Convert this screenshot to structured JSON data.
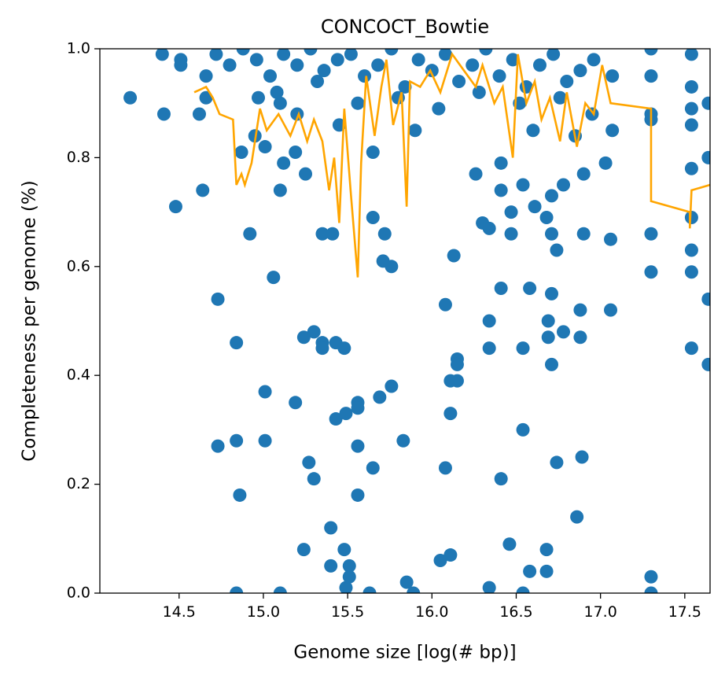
{
  "chart_data": {
    "type": "scatter",
    "title": "CONCOCT_Bowtie",
    "x_label": "Genome size [log(# bp)]",
    "y_label": "Completeness per genome (%)",
    "xlim": [
      14.03,
      17.65
    ],
    "ylim": [
      0,
      1
    ],
    "xticks": [
      14.5,
      {
        "value": 15,
        "label": "15.0"
      },
      15.5,
      {
        "value": 16,
        "label": "16.0"
      },
      16.5,
      {
        "value": 17,
        "label": "17.0"
      },
      17.5
    ],
    "yticks": [
      {
        "value": 0,
        "label": "0.0"
      },
      0.2,
      0.4,
      0.6,
      0.8,
      {
        "value": 1,
        "label": "1.0"
      }
    ],
    "points": {
      "color": "#1f77b4",
      "x": [
        14.21,
        14.4,
        14.41,
        14.48,
        14.51,
        14.51,
        14.62,
        14.64,
        14.66,
        14.66,
        14.73,
        14.73,
        14.84,
        14.84,
        14.84,
        14.86,
        14.87,
        14.92,
        14.95,
        14.97,
        15.01,
        15.01,
        15.01,
        15.06,
        15.1,
        15.1,
        15.12,
        15.1,
        15.19,
        15.19,
        15.24,
        15.24,
        15.25,
        15.27,
        15.3,
        15.3,
        15.35,
        15.35,
        15.35,
        15.4,
        15.4,
        15.41,
        15.43,
        15.43,
        15.48,
        15.48,
        15.49,
        15.51,
        15.51,
        15.49,
        15.56,
        15.56,
        15.56,
        15.56,
        15.65,
        15.65,
        15.65,
        15.69,
        15.71,
        15.72,
        15.76,
        15.76,
        15.83,
        15.85,
        15.89,
        15.63,
        16.05,
        16.08,
        16.08,
        16.11,
        16.11,
        16.11,
        16.13,
        16.15,
        16.15,
        16.15,
        16.26,
        16.3,
        16.34,
        16.34,
        16.34,
        16.34,
        16.41,
        16.41,
        16.41,
        16.41,
        16.46,
        16.47,
        16.47,
        16.54,
        16.54,
        16.54,
        16.54,
        16.58,
        16.58,
        16.61,
        16.68,
        16.68,
        16.68,
        16.69,
        16.69,
        16.71,
        16.71,
        16.71,
        16.71,
        16.74,
        16.74,
        16.78,
        16.78,
        16.86,
        16.88,
        16.88,
        16.89,
        16.9,
        16.9,
        17.06,
        17.06,
        17.03,
        17.3,
        17.3,
        17.3,
        17.3,
        17.3,
        17.3,
        17.3,
        17.3,
        17.54,
        17.54,
        17.54,
        17.54,
        17.54,
        17.54,
        17.54,
        17.54,
        17.54,
        17.64,
        17.64,
        17.64,
        17.64,
        14.72,
        14.8,
        14.88,
        14.96,
        15.04,
        15.12,
        15.2,
        15.28,
        15.36,
        15.44,
        15.52,
        15.6,
        15.68,
        15.76,
        15.84,
        15.92,
        16.0,
        16.08,
        16.16,
        16.24,
        16.32,
        16.4,
        16.48,
        16.56,
        16.64,
        16.72,
        16.8,
        16.88,
        16.96,
        15.08,
        15.32,
        15.56,
        15.8,
        16.04,
        16.28,
        16.52,
        16.76,
        16.95,
        15.2,
        15.45,
        15.9,
        16.6,
        16.85,
        17.07,
        17.07
      ],
      "values": [
        0.91,
        0.99,
        0.88,
        0.71,
        0.98,
        0.97,
        0.88,
        0.74,
        0.95,
        0.91,
        0.54,
        0.27,
        0.46,
        0.28,
        0.0,
        0.18,
        0.81,
        0.66,
        0.84,
        0.91,
        0.82,
        0.37,
        0.28,
        0.58,
        0.0,
        0.74,
        0.79,
        0.9,
        0.35,
        0.81,
        0.47,
        0.08,
        0.77,
        0.24,
        0.48,
        0.21,
        0.66,
        0.46,
        0.45,
        0.12,
        0.05,
        0.66,
        0.32,
        0.46,
        0.45,
        0.08,
        0.01,
        0.05,
        0.03,
        0.33,
        0.35,
        0.34,
        0.27,
        0.18,
        0.81,
        0.69,
        0.23,
        0.36,
        0.61,
        0.66,
        0.6,
        0.38,
        0.28,
        0.02,
        0.0,
        0.0,
        0.06,
        0.53,
        0.23,
        0.39,
        0.33,
        0.07,
        0.62,
        0.43,
        0.42,
        0.39,
        0.77,
        0.68,
        0.67,
        0.5,
        0.45,
        0.01,
        0.56,
        0.21,
        0.79,
        0.74,
        0.09,
        0.66,
        0.7,
        0.75,
        0.45,
        0.3,
        0.0,
        0.56,
        0.04,
        0.71,
        0.69,
        0.08,
        0.04,
        0.5,
        0.47,
        0.55,
        0.42,
        0.66,
        0.73,
        0.63,
        0.24,
        0.48,
        0.75,
        0.14,
        0.52,
        0.47,
        0.25,
        0.66,
        0.77,
        0.52,
        0.65,
        0.79,
        1.0,
        0.95,
        0.88,
        0.87,
        0.66,
        0.59,
        0.03,
        0.0,
        0.99,
        0.93,
        0.89,
        0.86,
        0.78,
        0.69,
        0.63,
        0.59,
        0.45,
        0.42,
        0.54,
        0.8,
        0.9,
        0.99,
        0.97,
        1.0,
        0.98,
        0.95,
        0.99,
        0.97,
        1.0,
        0.96,
        0.98,
        0.99,
        0.95,
        0.97,
        1.0,
        0.93,
        0.98,
        0.96,
        0.99,
        0.94,
        0.97,
        1.0,
        0.95,
        0.98,
        0.93,
        0.97,
        0.99,
        0.94,
        0.96,
        0.98,
        0.92,
        0.94,
        0.9,
        0.91,
        0.89,
        0.92,
        0.9,
        0.91,
        0.88,
        0.88,
        0.86,
        0.85,
        0.85,
        0.84,
        0.85,
        0.95
      ]
    },
    "line": {
      "color": "#ffa500",
      "x": [
        14.59,
        14.66,
        14.7,
        14.74,
        14.82,
        14.84,
        14.87,
        14.89,
        14.93,
        14.98,
        15.02,
        15.09,
        15.16,
        15.21,
        15.26,
        15.3,
        15.35,
        15.39,
        15.42,
        15.45,
        15.48,
        15.52,
        15.56,
        15.58,
        15.61,
        15.66,
        15.7,
        15.73,
        15.77,
        15.82,
        15.85,
        15.87,
        15.93,
        15.99,
        16.05,
        16.12,
        16.19,
        16.26,
        16.3,
        16.37,
        16.42,
        16.48,
        16.51,
        16.56,
        16.61,
        16.65,
        16.7,
        16.76,
        16.8,
        16.86,
        16.91,
        16.96,
        17.01,
        17.06,
        17.3,
        17.3,
        17.53,
        17.53,
        17.54,
        17.65
      ],
      "values": [
        0.92,
        0.93,
        0.91,
        0.88,
        0.87,
        0.75,
        0.77,
        0.75,
        0.79,
        0.89,
        0.85,
        0.88,
        0.84,
        0.88,
        0.83,
        0.87,
        0.83,
        0.74,
        0.8,
        0.68,
        0.89,
        0.73,
        0.58,
        0.79,
        0.95,
        0.84,
        0.93,
        0.98,
        0.86,
        0.92,
        0.71,
        0.94,
        0.93,
        0.96,
        0.92,
        0.99,
        0.96,
        0.93,
        0.97,
        0.9,
        0.93,
        0.8,
        0.99,
        0.9,
        0.94,
        0.87,
        0.91,
        0.83,
        0.92,
        0.82,
        0.9,
        0.88,
        0.97,
        0.9,
        0.89,
        0.72,
        0.7,
        0.67,
        0.74,
        0.75
      ]
    }
  }
}
